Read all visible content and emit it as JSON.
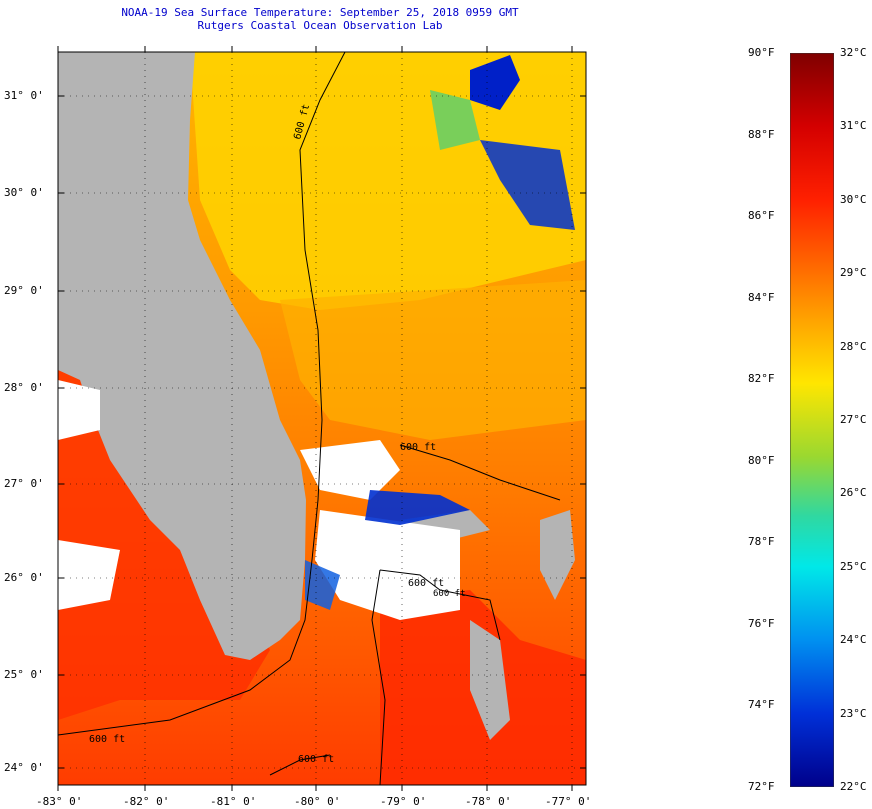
{
  "title": {
    "line1": "NOAA-19 Sea Surface Temperature:  September 25, 2018 0959 GMT",
    "line2": "Rutgers Coastal Ocean Observation Lab"
  },
  "map": {
    "lat_labels": [
      "31° 0'",
      "30° 0'",
      "29° 0'",
      "28° 0'",
      "27° 0'",
      "26° 0'",
      "25° 0'",
      "24° 0'"
    ],
    "lon_labels": [
      "-83° 0'",
      "-82° 0'",
      "-81° 0'",
      "-80° 0'",
      "-79° 0'",
      "-78° 0'",
      "-77° 0'"
    ],
    "contour_labels": [
      "600 ft",
      "600 ft",
      "600 ft",
      "600 ft",
      "600 ft",
      "600 ft"
    ],
    "colors": {
      "land": "#b4b4b4",
      "cloud": "#ffffff",
      "warm": "#ff8c00",
      "hot": "#ff2a00",
      "mild": "#ffd000"
    }
  },
  "colorbar": {
    "fahrenheit": [
      "90°F",
      "88°F",
      "86°F",
      "84°F",
      "82°F",
      "80°F",
      "78°F",
      "76°F",
      "74°F",
      "72°F"
    ],
    "celsius": [
      "32°C",
      "31°C",
      "30°C",
      "29°C",
      "28°C",
      "27°C",
      "26°C",
      "25°C",
      "24°C",
      "23°C",
      "22°C"
    ]
  }
}
